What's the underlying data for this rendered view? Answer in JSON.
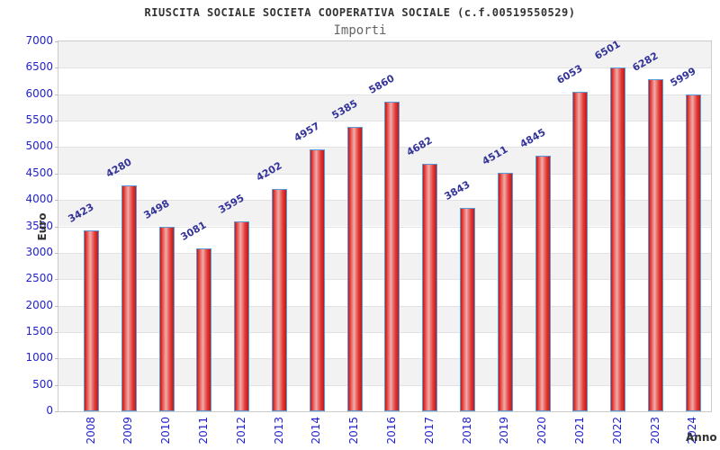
{
  "chart_data": {
    "type": "bar",
    "title": "RIUSCITA SOCIALE SOCIETA COOPERATIVA SOCIALE (c.f.00519550529)",
    "subtitle": "Importi",
    "xlabel": "Anno",
    "ylabel": "Euro",
    "categories": [
      "2008",
      "2009",
      "2010",
      "2011",
      "2012",
      "2013",
      "2014",
      "2015",
      "2016",
      "2017",
      "2018",
      "2019",
      "2020",
      "2021",
      "2022",
      "2023",
      "2024"
    ],
    "values": [
      3423,
      4280,
      3498,
      3081,
      3595,
      4202,
      4957,
      5385,
      5860,
      4682,
      3843,
      4511,
      4845,
      6053,
      6501,
      6282,
      5999
    ],
    "ylim": [
      0,
      7000
    ],
    "ytick_step": 500,
    "grid": "horizontal-bands-alternating",
    "legend": "none",
    "colors": {
      "bar_edge_dark": "#b71c1c",
      "bar_mid": "#e53935",
      "bar_highlight": "#efadaa",
      "bar_border": "#5b9bd5",
      "tick_label": "#2222cc",
      "value_label": "#333399",
      "axis_title": "#333333",
      "band_gray": "#f2f2f2",
      "band_white": "#ffffff",
      "plot_border": "#cccccc",
      "gridline": "#e2e2e2"
    }
  }
}
